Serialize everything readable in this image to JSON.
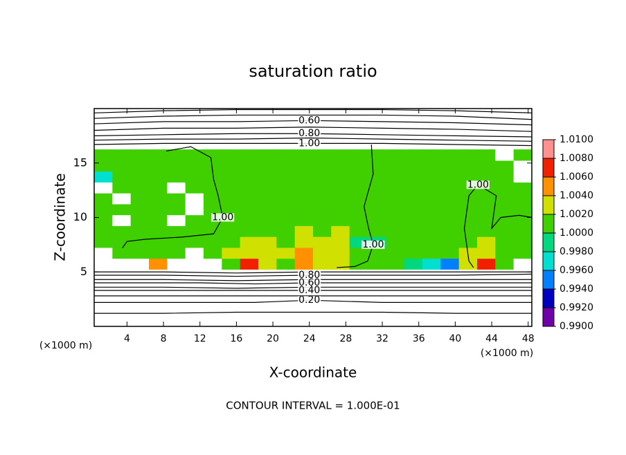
{
  "chart_data": {
    "type": "contour",
    "title": "saturation ratio",
    "xlabel": "X-coordinate",
    "ylabel": "Z-coordinate",
    "x_unit_label": "(×1000 m)",
    "footer": "CONTOUR INTERVAL = 1.000E-01",
    "xlim": [
      0.4,
      48.4
    ],
    "ylim": [
      0,
      20
    ],
    "xticks": [
      4,
      8,
      12,
      16,
      20,
      24,
      28,
      32,
      36,
      40,
      44,
      48
    ],
    "yticks": [
      5,
      10,
      15
    ],
    "colorbar": {
      "lim": [
        0.99,
        1.01
      ],
      "colors": [
        "#7000a8",
        "#0000c0",
        "#0080ff",
        "#00e0d0",
        "#00d880",
        "#40d000",
        "#d0e000",
        "#ff9000",
        "#f02000",
        "#ff9090"
      ],
      "ticks": [
        {
          "value": 0.99,
          "label": "0.9900"
        },
        {
          "value": 0.992,
          "label": "0.9920"
        },
        {
          "value": 0.994,
          "label": "0.9940"
        },
        {
          "value": 0.996,
          "label": "0.9960"
        },
        {
          "value": 0.998,
          "label": "0.9980"
        },
        {
          "value": 1.0,
          "label": "1.0000"
        },
        {
          "value": 1.002,
          "label": "1.0020"
        },
        {
          "value": 1.004,
          "label": "1.0040"
        },
        {
          "value": 1.006,
          "label": "1.0060"
        },
        {
          "value": 1.008,
          "label": "1.0080"
        },
        {
          "value": 1.01,
          "label": "1.0100"
        }
      ]
    },
    "field": {
      "x": [
        1.4,
        3.4,
        5.4,
        7.4,
        9.4,
        11.4,
        13.4,
        15.4,
        17.4,
        19.4,
        21.4,
        23.4,
        25.4,
        27.4,
        29.4,
        31.4,
        33.4,
        35.4,
        37.4,
        39.4,
        41.4,
        43.4,
        45.4,
        47.4
      ],
      "z": [
        5.75,
        6.75,
        7.75,
        8.75,
        9.75,
        10.75,
        11.75,
        12.75,
        13.75,
        14.75,
        15.75
      ],
      "values": [
        [
          0.98,
          0.98,
          0.98,
          1.005,
          0.98,
          0.98,
          0.98,
          1.001,
          1.007,
          1.003,
          1.001,
          1.005,
          1.003,
          1.003,
          1.001,
          1.0,
          1.001,
          0.999,
          0.997,
          0.994,
          1.003,
          1.007,
          1.001,
          0.98
        ],
        [
          0.98,
          1.0,
          1.001,
          1.001,
          1.001,
          0.98,
          1.001,
          1.002,
          1.003,
          1.002,
          1.002,
          1.004,
          1.003,
          1.003,
          1.001,
          1.0,
          1.001,
          1.001,
          1.001,
          1.001,
          1.002,
          1.003,
          1.001,
          1.001
        ],
        [
          1.0,
          1.001,
          1.001,
          1.001,
          1.001,
          1.001,
          1.001,
          1.001,
          1.002,
          1.002,
          1.001,
          1.003,
          1.002,
          1.003,
          0.999,
          0.999,
          1.001,
          1.001,
          1.001,
          1.001,
          1.001,
          1.002,
          1.001,
          1.0
        ],
        [
          1.001,
          1.001,
          1.001,
          1.001,
          1.0,
          1.001,
          1.001,
          1.001,
          1.001,
          1.001,
          1.001,
          1.002,
          1.001,
          1.002,
          1.001,
          1.0,
          1.001,
          1.001,
          1.001,
          1.001,
          1.001,
          1.001,
          1.001,
          1.001
        ],
        [
          1.001,
          0.98,
          1.001,
          1.001,
          0.98,
          1.001,
          1.001,
          1.001,
          1.001,
          1.001,
          1.001,
          1.001,
          1.001,
          1.001,
          1.001,
          1.001,
          1.001,
          1.001,
          1.001,
          1.001,
          1.001,
          1.001,
          1.0,
          1.001
        ],
        [
          1.001,
          1.001,
          1.0,
          1.001,
          1.001,
          0.98,
          1.001,
          1.001,
          1.001,
          1.001,
          1.001,
          1.001,
          1.001,
          1.001,
          1.001,
          1.001,
          1.001,
          1.001,
          1.001,
          1.001,
          1.001,
          1.001,
          1.001,
          1.001
        ],
        [
          1.001,
          0.98,
          1.001,
          1.001,
          1.001,
          0.98,
          1.001,
          1.001,
          1.001,
          1.001,
          1.001,
          1.001,
          1.001,
          1.001,
          1.001,
          1.001,
          1.001,
          1.001,
          1.001,
          1.001,
          1.001,
          1.001,
          1.001,
          1.001
        ],
        [
          0.98,
          1.001,
          1.001,
          1.001,
          0.98,
          1.001,
          1.001,
          1.001,
          1.001,
          1.001,
          1.001,
          1.001,
          1.001,
          1.001,
          1.001,
          1.001,
          1.001,
          1.001,
          1.001,
          1.001,
          1.001,
          1.001,
          1.001,
          1.001
        ],
        [
          0.996,
          1.0,
          1.001,
          1.001,
          1.001,
          1.001,
          1.001,
          1.001,
          1.001,
          1.001,
          1.001,
          1.001,
          1.001,
          1.001,
          1.001,
          1.001,
          1.001,
          1.001,
          1.001,
          1.001,
          1.001,
          1.001,
          1.001,
          0.98
        ],
        [
          1.001,
          1.001,
          1.001,
          1.001,
          1.001,
          1.001,
          1.001,
          1.001,
          1.001,
          1.001,
          1.001,
          1.001,
          1.001,
          1.001,
          1.001,
          1.001,
          1.001,
          1.001,
          1.001,
          1.001,
          1.001,
          1.001,
          1.001,
          0.98
        ],
        [
          1.001,
          1.001,
          1.001,
          1.001,
          1.001,
          1.001,
          1.001,
          1.001,
          1.001,
          1.001,
          1.001,
          1.001,
          1.001,
          1.001,
          1.001,
          1.001,
          1.001,
          1.001,
          1.001,
          1.001,
          1.001,
          1.001,
          0.98,
          1.001
        ]
      ]
    },
    "contours": [
      {
        "level": 0.4,
        "x": [
          0.4,
          8,
          16,
          24,
          32,
          40,
          48.4
        ],
        "z": [
          19.6,
          19.8,
          19.9,
          19.9,
          19.9,
          19.8,
          19.6
        ]
      },
      {
        "level": 0.5,
        "x": [
          0.4,
          8,
          16,
          24,
          32,
          40,
          48.4
        ],
        "z": [
          19.1,
          19.3,
          19.4,
          19.4,
          19.4,
          19.3,
          19.0
        ]
      },
      {
        "level": 0.6,
        "label": "0.60",
        "x": [
          0.4,
          8,
          16,
          24,
          32,
          40,
          48.4
        ],
        "z": [
          18.6,
          18.8,
          18.8,
          18.9,
          18.8,
          18.7,
          18.5
        ]
      },
      {
        "level": 0.7,
        "x": [
          0.4,
          8,
          16,
          24,
          32,
          40,
          48.4
        ],
        "z": [
          18.0,
          18.2,
          18.2,
          18.3,
          18.2,
          18.1,
          17.9
        ]
      },
      {
        "level": 0.8,
        "label": "0.80",
        "x": [
          0.4,
          8,
          16,
          24,
          32,
          40,
          48.4
        ],
        "z": [
          17.5,
          17.6,
          17.7,
          17.7,
          17.6,
          17.5,
          17.4
        ]
      },
      {
        "level": 0.9,
        "x": [
          0.4,
          8,
          16,
          24,
          32,
          40,
          48.4
        ],
        "z": [
          17.1,
          17.2,
          17.2,
          17.3,
          17.2,
          17.1,
          17.0
        ]
      },
      {
        "level": 1.0,
        "label": "1.00",
        "x": [
          0.4,
          8,
          16,
          24,
          32,
          40,
          48.4
        ],
        "z": [
          16.7,
          16.8,
          16.8,
          16.8,
          16.8,
          16.7,
          16.6
        ]
      },
      {
        "level": 0.9,
        "x": [
          0.4,
          8,
          16,
          24,
          32,
          40,
          48.4
        ],
        "z": [
          5.0,
          5.0,
          4.9,
          5.0,
          5.0,
          5.0,
          5.0
        ]
      },
      {
        "level": 0.8,
        "label": "0.80",
        "x": [
          0.4,
          8,
          16,
          24,
          32,
          40,
          48.4
        ],
        "z": [
          4.7,
          4.7,
          4.6,
          4.7,
          4.7,
          4.7,
          4.8
        ]
      },
      {
        "level": 0.7,
        "x": [
          0.4,
          8,
          16,
          24,
          32,
          40,
          48.4
        ],
        "z": [
          4.3,
          4.3,
          4.2,
          4.3,
          4.3,
          4.3,
          4.3
        ]
      },
      {
        "level": 0.6,
        "label": "0.60",
        "x": [
          0.4,
          12,
          18,
          24,
          32,
          40,
          48.4
        ],
        "z": [
          4.0,
          4.0,
          3.9,
          4.0,
          4.0,
          4.0,
          4.0
        ]
      },
      {
        "level": 0.5,
        "x": [
          0.4,
          8,
          16,
          24,
          32,
          40,
          48.4
        ],
        "z": [
          3.6,
          3.6,
          3.5,
          3.6,
          3.6,
          3.6,
          3.6
        ]
      },
      {
        "level": 0.4,
        "label": "0.40",
        "x": [
          0.4,
          12,
          18,
          24,
          32,
          40,
          48.4
        ],
        "z": [
          3.3,
          3.3,
          3.3,
          3.3,
          3.3,
          3.3,
          3.3
        ]
      },
      {
        "level": 0.3,
        "x": [
          0.4,
          8,
          16,
          24,
          32,
          40,
          48.4
        ],
        "z": [
          2.8,
          2.8,
          2.8,
          2.8,
          2.8,
          2.8,
          2.8
        ]
      },
      {
        "level": 0.2,
        "label": "0.20",
        "x": [
          0.4,
          12,
          18,
          24,
          32,
          40,
          48.4
        ],
        "z": [
          2.2,
          2.2,
          2.2,
          2.4,
          2.2,
          2.2,
          2.2
        ]
      },
      {
        "level": 0.1,
        "x": [
          0.4,
          8,
          16,
          24,
          32,
          40,
          48.4
        ],
        "z": [
          1.2,
          1.2,
          1.3,
          1.3,
          1.3,
          1.2,
          1.2
        ]
      },
      {
        "level": 1.0,
        "label": "1.00",
        "x": [
          8.3,
          11,
          13.2,
          13.5,
          14.0,
          14.5,
          13.5,
          10,
          6,
          4,
          3.5
        ],
        "z": [
          16.1,
          16.5,
          15.5,
          13.5,
          12,
          10,
          8.5,
          8.2,
          8.0,
          7.8,
          7.2
        ]
      },
      {
        "level": 1.0,
        "label": "1.00",
        "x": [
          30.8,
          31,
          30,
          30.5,
          31,
          30.4,
          29,
          27
        ],
        "z": [
          16.7,
          14,
          11,
          9,
          7.5,
          6,
          5.5,
          5.4
        ]
      },
      {
        "level": 1.0,
        "label": "1.00",
        "x": [
          48.4,
          47,
          45,
          44,
          44.5,
          42.5,
          41.5,
          41,
          41.5,
          42
        ],
        "z": [
          10,
          10.2,
          10,
          9,
          12,
          13,
          12,
          9,
          6,
          5.4
        ]
      }
    ]
  }
}
